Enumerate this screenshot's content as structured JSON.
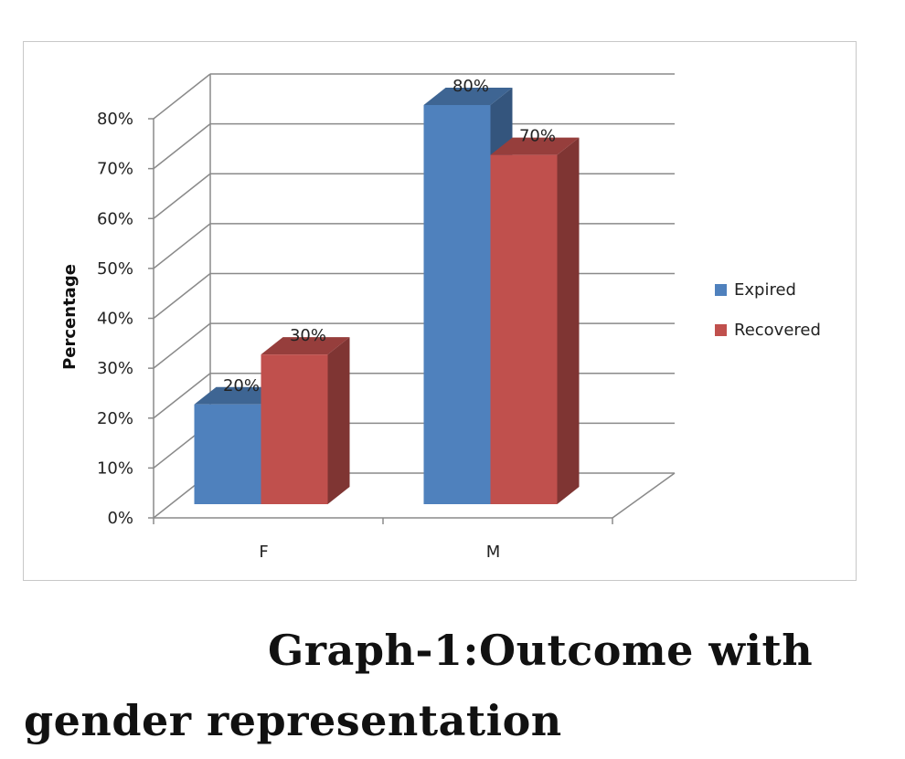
{
  "chart_data": {
    "type": "bar",
    "style": "3d-clustered-column",
    "categories": [
      "F",
      "M"
    ],
    "series": [
      {
        "name": "Expired",
        "values": [
          20,
          80
        ],
        "color": "#4F81BD",
        "labels": [
          "20%",
          "80%"
        ]
      },
      {
        "name": "Recovered",
        "values": [
          30,
          70
        ],
        "color": "#C0504D",
        "labels": [
          "30%",
          "70%"
        ]
      }
    ],
    "ylabel": "Percentage",
    "ylim": [
      0,
      80
    ],
    "yticks": [
      0,
      10,
      20,
      30,
      40,
      50,
      60,
      70,
      80
    ],
    "ytick_labels": [
      "0%",
      "10%",
      "20%",
      "30%",
      "40%",
      "50%",
      "60%",
      "70%",
      "80%"
    ],
    "grid": true,
    "legend": "right"
  },
  "caption": {
    "line1": "Graph-1:Outcome with",
    "line2": "gender  representation"
  }
}
